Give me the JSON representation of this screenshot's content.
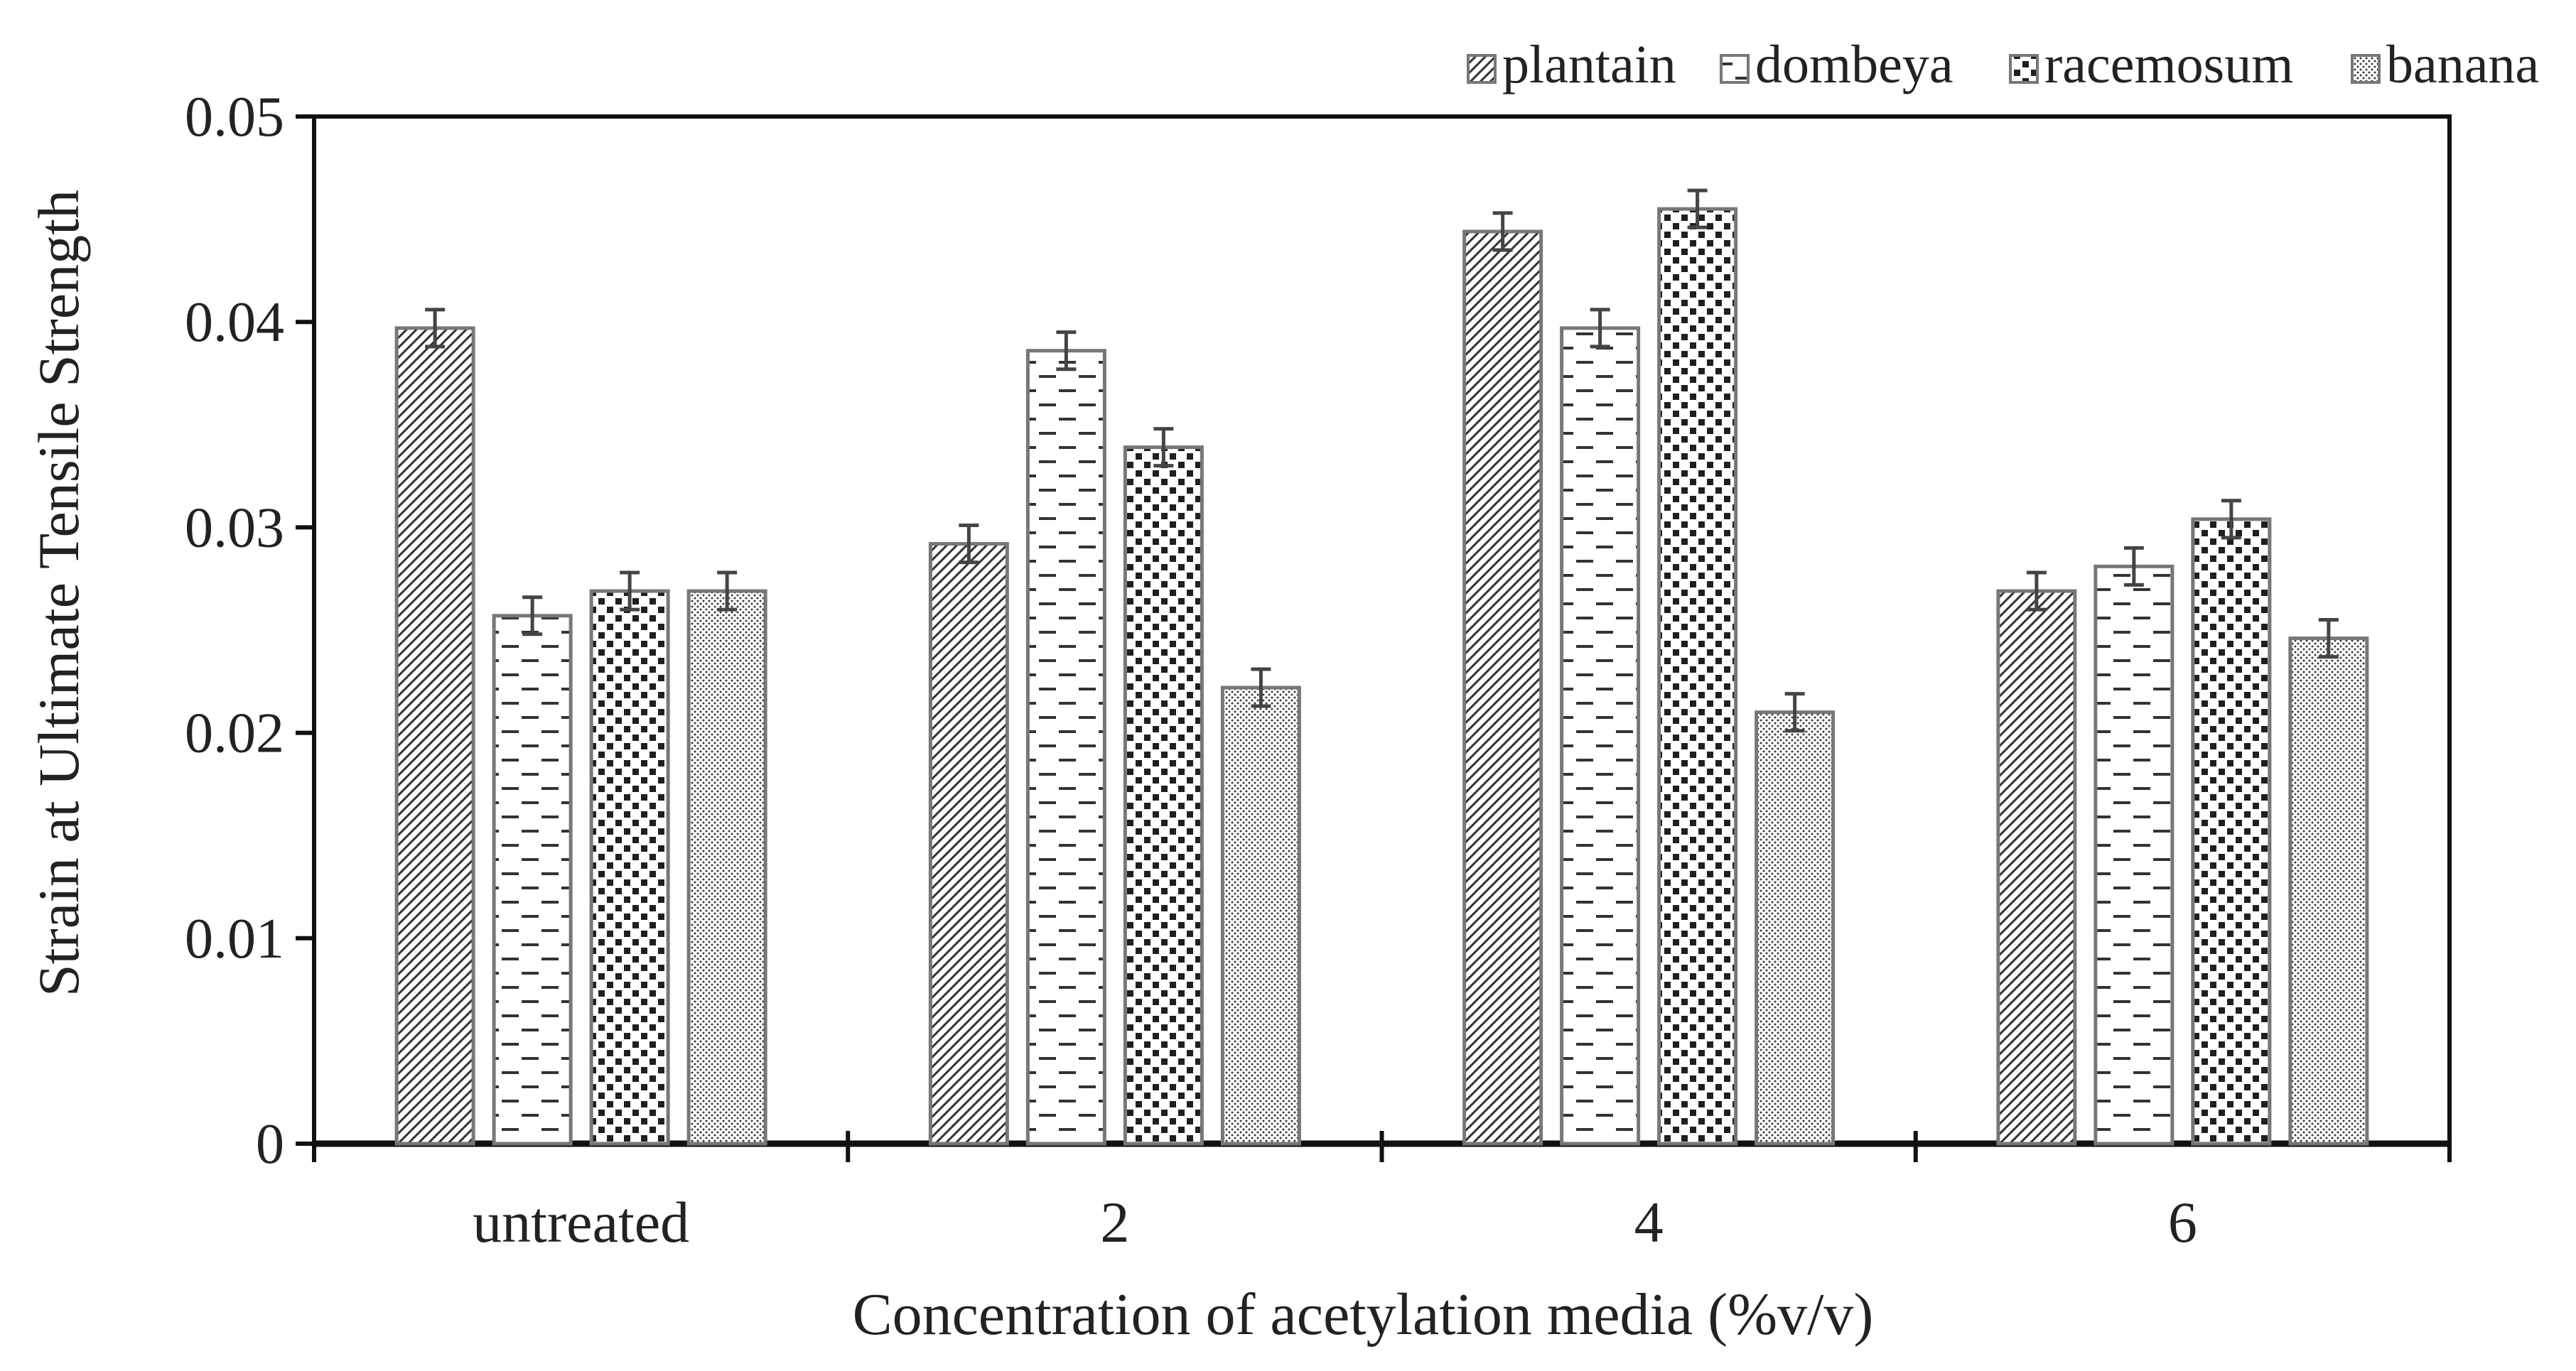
{
  "chart_data": {
    "type": "bar",
    "title": "",
    "xlabel": "Concentration of acetylation media (%v/v)",
    "ylabel": "Strain at Ultimate Tensile Strength",
    "categories": [
      "untreated",
      "2",
      "4",
      "6"
    ],
    "ylim": [
      0,
      0.05
    ],
    "yticks": [
      0,
      0.01,
      0.02,
      0.03,
      0.04,
      0.05
    ],
    "ytick_labels": [
      "0",
      "0.01",
      "0.02",
      "0.03",
      "0.04",
      "0.05"
    ],
    "grid": false,
    "legend_position": "top-right",
    "error_bar": 0.0009,
    "series": [
      {
        "name": "plantain",
        "pattern": "diagonal-hatch",
        "values": [
          0.0397,
          0.0292,
          0.0444,
          0.0269
        ]
      },
      {
        "name": "dombeya",
        "pattern": "dashes",
        "values": [
          0.0257,
          0.0386,
          0.0397,
          0.0281
        ]
      },
      {
        "name": "racemosum",
        "pattern": "checker",
        "values": [
          0.0269,
          0.0339,
          0.0455,
          0.0304
        ]
      },
      {
        "name": "banana",
        "pattern": "dots",
        "values": [
          0.0269,
          0.0222,
          0.021,
          0.0246
        ]
      }
    ],
    "colors": {
      "axis": "#111111",
      "bar_edge": "#777777",
      "pattern": "#333333",
      "error_bar": "#444444"
    }
  }
}
